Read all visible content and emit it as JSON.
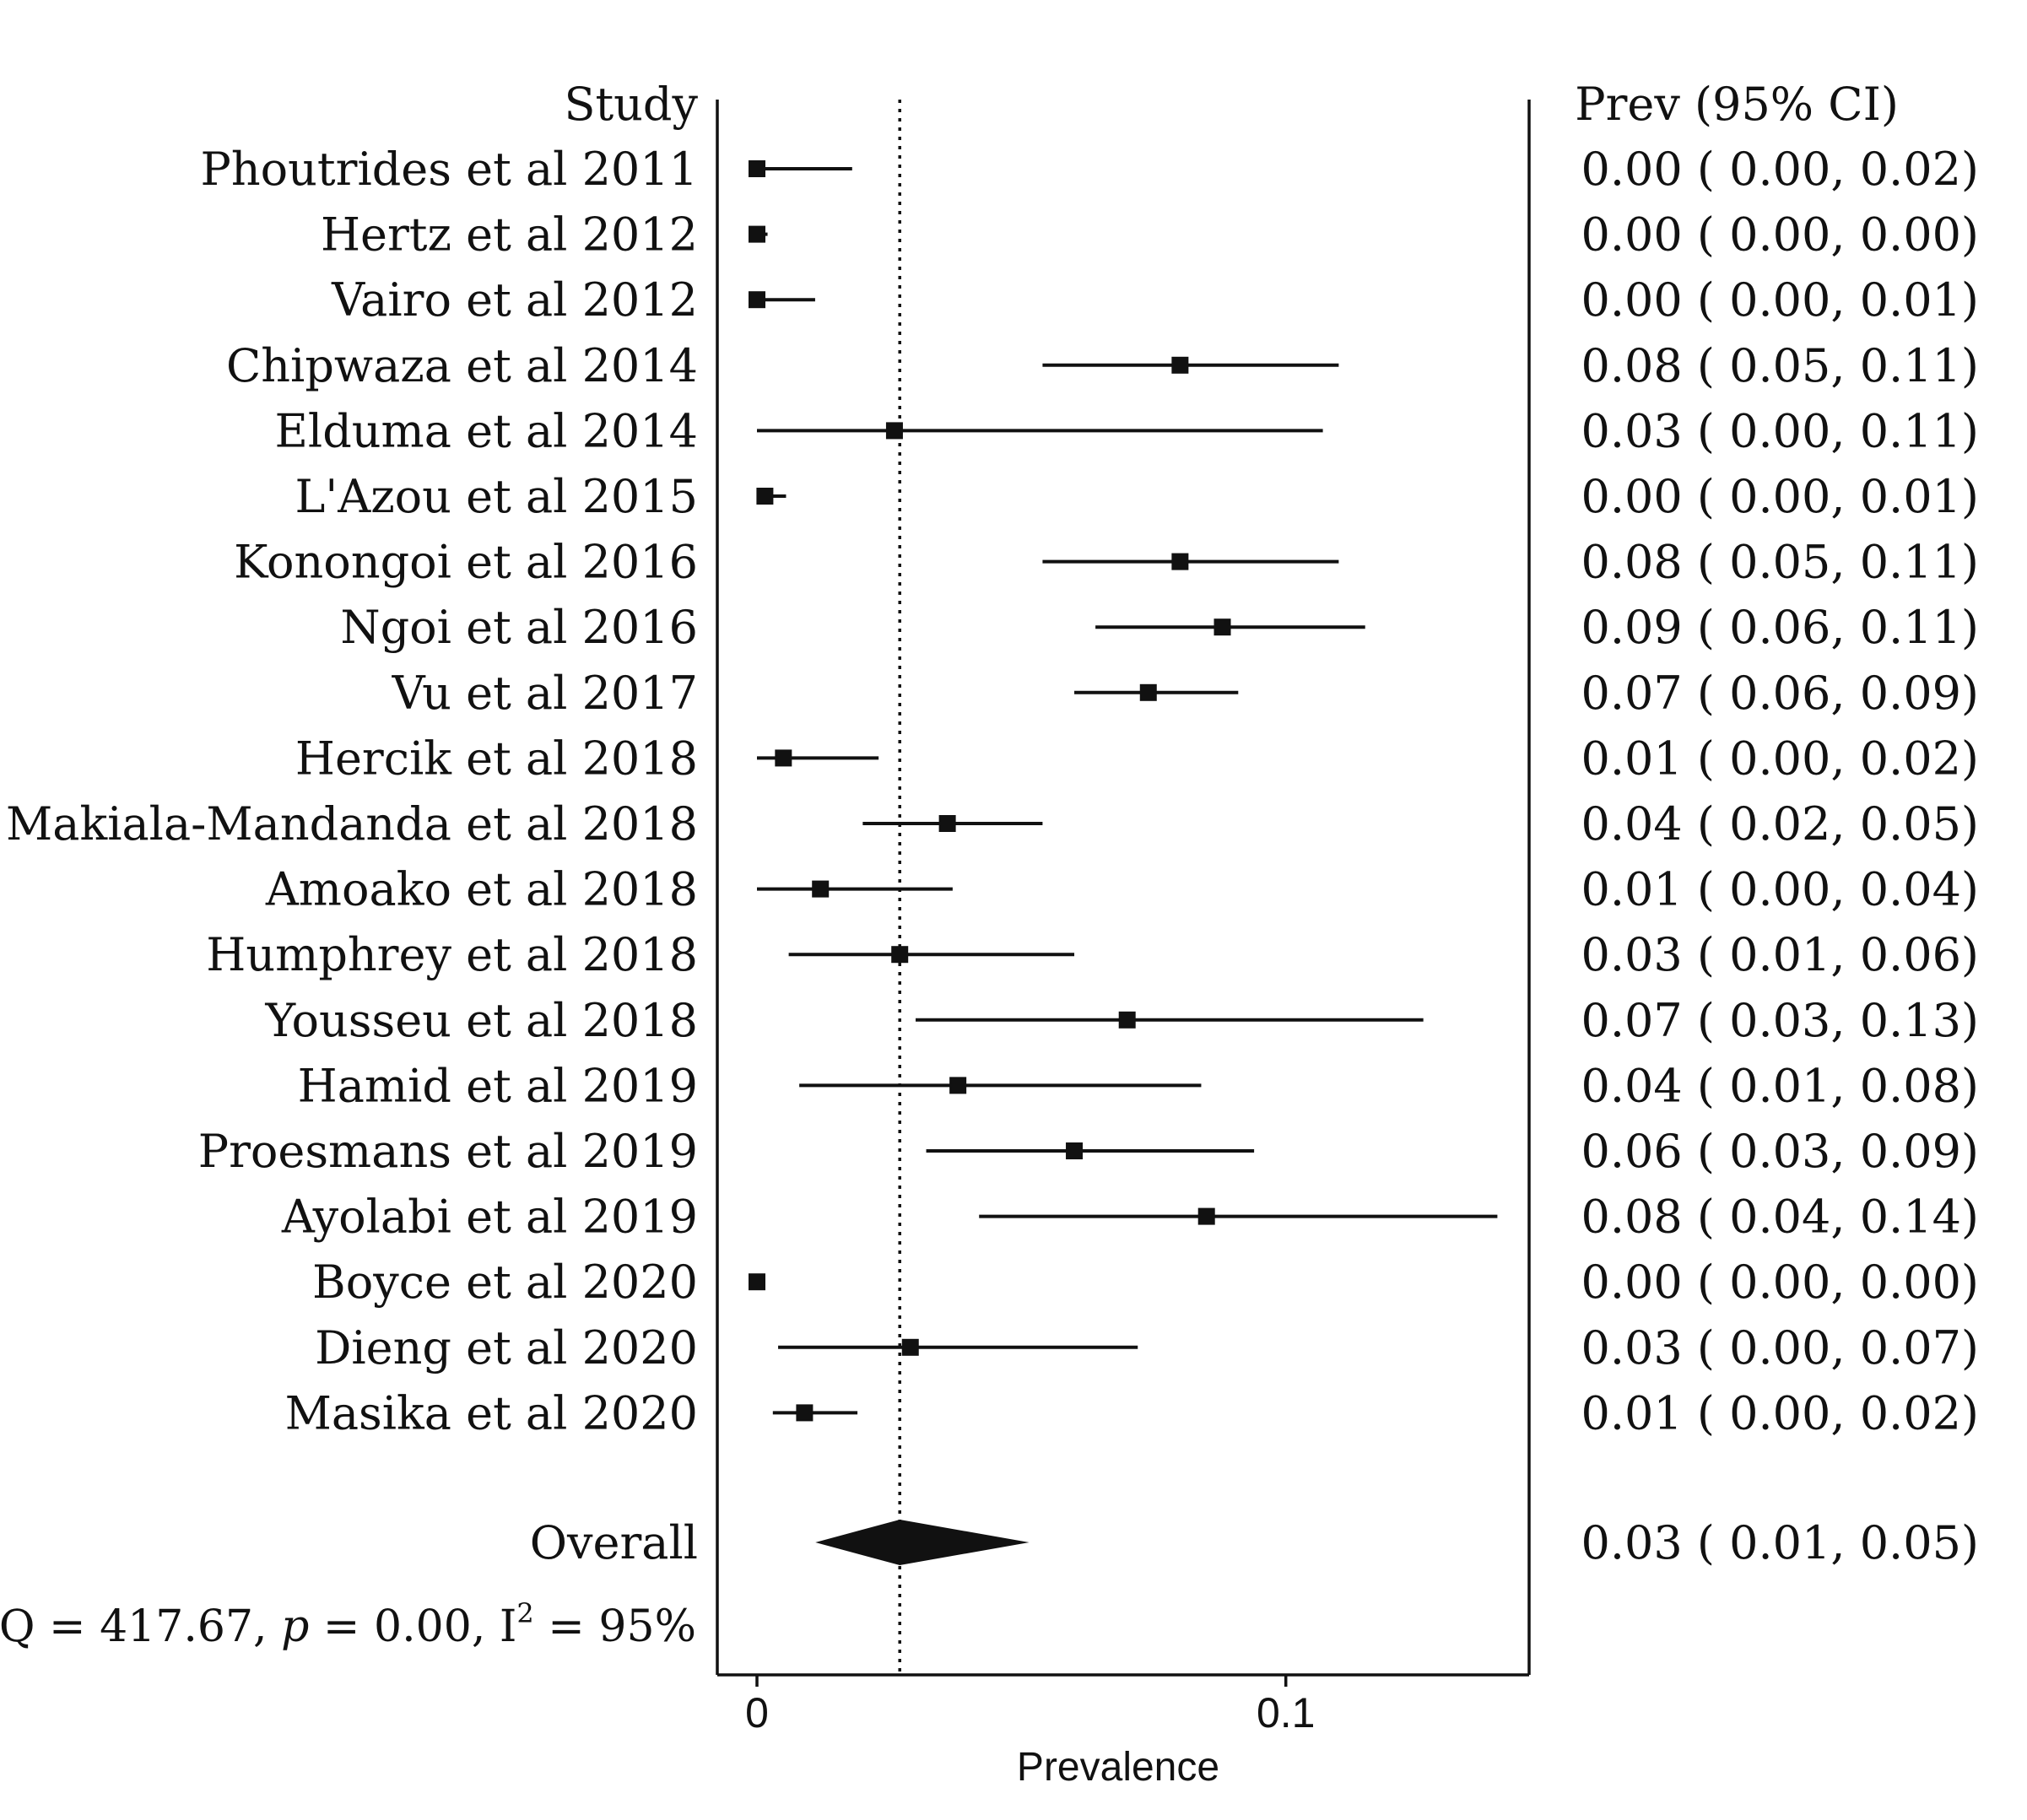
{
  "chart_data": {
    "type": "forest",
    "title": "",
    "left_header": "Study",
    "right_header": "Prev (95% CI)",
    "xlabel": "Prevalence",
    "xlim": [
      -0.0075,
      0.146
    ],
    "xticks": [
      0,
      0.1
    ],
    "xtick_labels": [
      "0",
      "0.1"
    ],
    "reference_line": 0.027,
    "studies": [
      {
        "name": "Phoutrides et al 2011",
        "est": 0.0,
        "lo": 0.0,
        "hi": 0.018,
        "label": "0.00 ( 0.00, 0.02)"
      },
      {
        "name": "Hertz et al 2012",
        "est": 0.0,
        "lo": 0.0,
        "hi": 0.002,
        "label": "0.00 ( 0.00, 0.00)"
      },
      {
        "name": "Vairo et al 2012",
        "est": 0.0,
        "lo": 0.0,
        "hi": 0.011,
        "label": "0.00 ( 0.00, 0.01)"
      },
      {
        "name": "Chipwaza et al 2014",
        "est": 0.08,
        "lo": 0.054,
        "hi": 0.11,
        "label": "0.08 ( 0.05, 0.11)"
      },
      {
        "name": "Elduma et al 2014",
        "est": 0.026,
        "lo": 0.0,
        "hi": 0.107,
        "label": "0.03 ( 0.00, 0.11)"
      },
      {
        "name": "L'Azou et al 2015",
        "est": 0.0015,
        "lo": 0.0,
        "hi": 0.0055,
        "label": "0.00 ( 0.00, 0.01)"
      },
      {
        "name": "Konongoi et al 2016",
        "est": 0.08,
        "lo": 0.054,
        "hi": 0.11,
        "label": "0.08 ( 0.05, 0.11)"
      },
      {
        "name": "Ngoi et al 2016",
        "est": 0.088,
        "lo": 0.064,
        "hi": 0.115,
        "label": "0.09 ( 0.06, 0.11)"
      },
      {
        "name": "Vu et al 2017",
        "est": 0.074,
        "lo": 0.06,
        "hi": 0.091,
        "label": "0.07 ( 0.06, 0.09)"
      },
      {
        "name": "Hercik et al 2018",
        "est": 0.005,
        "lo": 0.0,
        "hi": 0.023,
        "label": "0.01 ( 0.00, 0.02)"
      },
      {
        "name": "Makiala-Mandanda et al 2018",
        "est": 0.036,
        "lo": 0.02,
        "hi": 0.054,
        "label": "0.04 ( 0.02, 0.05)"
      },
      {
        "name": "Amoako et al 2018",
        "est": 0.012,
        "lo": 0.0,
        "hi": 0.037,
        "label": "0.01 ( 0.00, 0.04)"
      },
      {
        "name": "Humphrey et al 2018",
        "est": 0.027,
        "lo": 0.006,
        "hi": 0.06,
        "label": "0.03 ( 0.01, 0.06)"
      },
      {
        "name": "Yousseu et al 2018",
        "est": 0.07,
        "lo": 0.03,
        "hi": 0.126,
        "label": "0.07 ( 0.03, 0.13)"
      },
      {
        "name": "Hamid et al 2019",
        "est": 0.038,
        "lo": 0.008,
        "hi": 0.084,
        "label": "0.04 ( 0.01, 0.08)"
      },
      {
        "name": "Proesmans et al 2019",
        "est": 0.06,
        "lo": 0.032,
        "hi": 0.094,
        "label": "0.06 ( 0.03, 0.09)"
      },
      {
        "name": "Ayolabi et al 2019",
        "est": 0.085,
        "lo": 0.042,
        "hi": 0.14,
        "label": "0.08 ( 0.04, 0.14)"
      },
      {
        "name": "Boyce et al 2020",
        "est": 0.0,
        "lo": 0.0,
        "hi": 0.0,
        "label": "0.00 ( 0.00, 0.00)"
      },
      {
        "name": "Dieng et al 2020",
        "est": 0.029,
        "lo": 0.004,
        "hi": 0.072,
        "label": "0.03 ( 0.00, 0.07)"
      },
      {
        "name": "Masika et al 2020",
        "est": 0.009,
        "lo": 0.003,
        "hi": 0.019,
        "label": "0.01 ( 0.00, 0.02)"
      }
    ],
    "overall": {
      "name": "Overall",
      "est": 0.027,
      "lo": 0.012,
      "hi": 0.047,
      "label": "0.03 ( 0.01, 0.05)"
    },
    "heterogeneity": {
      "prefix": "Q = 417.67, ",
      "p_symbol": "p",
      "middle": " = 0.00, I",
      "sup": "2",
      "suffix": " = 95%"
    }
  }
}
